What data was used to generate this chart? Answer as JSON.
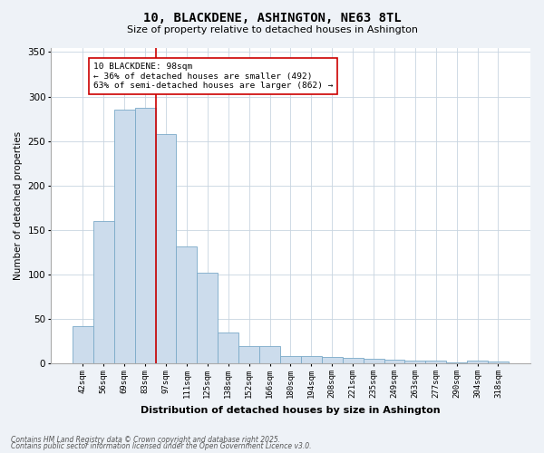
{
  "title1": "10, BLACKDENE, ASHINGTON, NE63 8TL",
  "title2": "Size of property relative to detached houses in Ashington",
  "xlabel": "Distribution of detached houses by size in Ashington",
  "ylabel": "Number of detached properties",
  "categories": [
    "42sqm",
    "56sqm",
    "69sqm",
    "83sqm",
    "97sqm",
    "111sqm",
    "125sqm",
    "138sqm",
    "152sqm",
    "166sqm",
    "180sqm",
    "194sqm",
    "208sqm",
    "221sqm",
    "235sqm",
    "249sqm",
    "263sqm",
    "277sqm",
    "290sqm",
    "304sqm",
    "318sqm"
  ],
  "values": [
    42,
    160,
    285,
    287,
    258,
    132,
    102,
    35,
    20,
    20,
    8,
    8,
    7,
    6,
    5,
    4,
    3,
    3,
    1,
    3,
    2
  ],
  "bar_color": "#ccdcec",
  "bar_edge_color": "#7aaac8",
  "redline_x": 4,
  "redline_label": "10 BLACKDENE: 98sqm",
  "pct_smaller": "36% of detached houses are smaller (492)",
  "pct_larger": "63% of semi-detached houses are larger (862)",
  "annotation_box_color": "#ffffff",
  "annotation_box_edge": "#cc0000",
  "redline_color": "#cc0000",
  "ylim": [
    0,
    355
  ],
  "yticks": [
    0,
    50,
    100,
    150,
    200,
    250,
    300,
    350
  ],
  "footnote1": "Contains HM Land Registry data © Crown copyright and database right 2025.",
  "footnote2": "Contains public sector information licensed under the Open Government Licence v3.0.",
  "bg_color": "#eef2f7",
  "plot_bg_color": "#ffffff",
  "grid_color": "#c8d4e0"
}
